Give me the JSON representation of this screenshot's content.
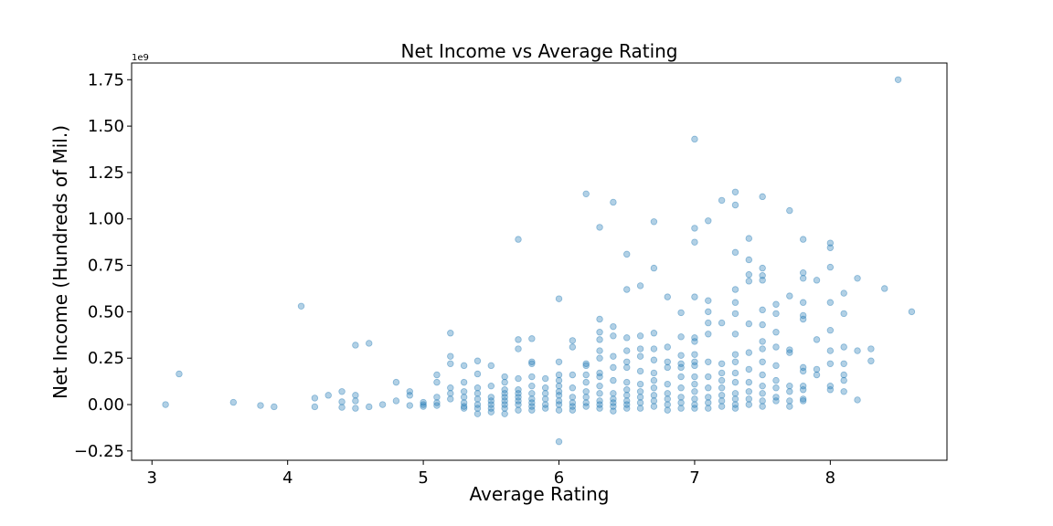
{
  "chart_data": {
    "type": "scatter",
    "title": "Net Income vs Average Rating",
    "xlabel": "Average Rating",
    "ylabel": "Net Income (Hundreds of Mil.)",
    "y_offset_label": "1e9",
    "xlim": [
      2.85,
      8.86
    ],
    "ylim": [
      -0.3,
      1.84
    ],
    "xticks": [
      3,
      4,
      5,
      6,
      7,
      8
    ],
    "xtick_labels": [
      "3",
      "4",
      "5",
      "6",
      "7",
      "8"
    ],
    "yticks": [
      -0.25,
      0.0,
      0.25,
      0.5,
      0.75,
      1.0,
      1.25,
      1.5,
      1.75
    ],
    "ytick_labels": [
      "−0.25",
      "0.00",
      "0.25",
      "0.50",
      "0.75",
      "1.00",
      "1.25",
      "1.50",
      "1.75"
    ],
    "grid": false,
    "marker_color": "#1f77b4",
    "marker_alpha": 0.35,
    "points": [
      [
        3.1,
        0.0
      ],
      [
        3.2,
        0.165
      ],
      [
        3.6,
        0.012
      ],
      [
        3.8,
        -0.005
      ],
      [
        3.9,
        -0.012
      ],
      [
        4.1,
        0.53
      ],
      [
        4.2,
        -0.012
      ],
      [
        4.2,
        0.035
      ],
      [
        4.3,
        0.05
      ],
      [
        4.4,
        0.07
      ],
      [
        4.4,
        0.015
      ],
      [
        4.4,
        -0.015
      ],
      [
        4.5,
        0.32
      ],
      [
        4.5,
        0.05
      ],
      [
        4.5,
        0.02
      ],
      [
        4.5,
        -0.02
      ],
      [
        4.6,
        0.33
      ],
      [
        4.6,
        -0.012
      ],
      [
        4.7,
        0.0
      ],
      [
        4.8,
        0.12
      ],
      [
        4.8,
        0.02
      ],
      [
        4.9,
        0.07
      ],
      [
        4.9,
        0.05
      ],
      [
        4.9,
        -0.005
      ],
      [
        5.0,
        0.012
      ],
      [
        5.0,
        0.0
      ],
      [
        5.0,
        -0.01
      ],
      [
        5.1,
        0.16
      ],
      [
        5.1,
        0.12
      ],
      [
        5.1,
        0.04
      ],
      [
        5.1,
        0.01
      ],
      [
        5.1,
        -0.005
      ],
      [
        5.2,
        0.385
      ],
      [
        5.2,
        0.26
      ],
      [
        5.2,
        0.22
      ],
      [
        5.2,
        0.09
      ],
      [
        5.2,
        0.06
      ],
      [
        5.2,
        0.03
      ],
      [
        5.3,
        0.21
      ],
      [
        5.3,
        0.12
      ],
      [
        5.3,
        0.07
      ],
      [
        5.3,
        0.04
      ],
      [
        5.3,
        0.01
      ],
      [
        5.3,
        -0.01
      ],
      [
        5.3,
        -0.02
      ],
      [
        5.4,
        0.235
      ],
      [
        5.4,
        0.165
      ],
      [
        5.4,
        0.09
      ],
      [
        5.4,
        0.06
      ],
      [
        5.4,
        0.03
      ],
      [
        5.4,
        0.0
      ],
      [
        5.4,
        -0.02
      ],
      [
        5.4,
        -0.05
      ],
      [
        5.5,
        0.21
      ],
      [
        5.5,
        0.1
      ],
      [
        5.5,
        0.04
      ],
      [
        5.5,
        0.02
      ],
      [
        5.5,
        0.0
      ],
      [
        5.5,
        -0.02
      ],
      [
        5.5,
        -0.04
      ],
      [
        5.6,
        0.15
      ],
      [
        5.6,
        0.12
      ],
      [
        5.6,
        0.08
      ],
      [
        5.6,
        0.06
      ],
      [
        5.6,
        0.04
      ],
      [
        5.6,
        0.02
      ],
      [
        5.6,
        0.0
      ],
      [
        5.6,
        -0.02
      ],
      [
        5.6,
        -0.05
      ],
      [
        5.7,
        0.89
      ],
      [
        5.7,
        0.35
      ],
      [
        5.7,
        0.3
      ],
      [
        5.7,
        0.14
      ],
      [
        5.7,
        0.08
      ],
      [
        5.7,
        0.06
      ],
      [
        5.7,
        0.04
      ],
      [
        5.7,
        0.02
      ],
      [
        5.7,
        0.0
      ],
      [
        5.7,
        -0.03
      ],
      [
        5.8,
        0.355
      ],
      [
        5.8,
        0.23
      ],
      [
        5.8,
        0.22
      ],
      [
        5.8,
        0.15
      ],
      [
        5.8,
        0.1
      ],
      [
        5.8,
        0.06
      ],
      [
        5.8,
        0.03
      ],
      [
        5.8,
        0.01
      ],
      [
        5.8,
        -0.01
      ],
      [
        5.8,
        -0.03
      ],
      [
        5.9,
        0.14
      ],
      [
        5.9,
        0.09
      ],
      [
        5.9,
        0.06
      ],
      [
        5.9,
        0.03
      ],
      [
        5.9,
        0.0
      ],
      [
        5.9,
        -0.02
      ],
      [
        6.0,
        0.57
      ],
      [
        6.0,
        0.23
      ],
      [
        6.0,
        0.16
      ],
      [
        6.0,
        0.13
      ],
      [
        6.0,
        0.1
      ],
      [
        6.0,
        0.07
      ],
      [
        6.0,
        0.05
      ],
      [
        6.0,
        0.02
      ],
      [
        6.0,
        0.0
      ],
      [
        6.0,
        -0.03
      ],
      [
        6.0,
        -0.2
      ],
      [
        6.1,
        0.345
      ],
      [
        6.1,
        0.31
      ],
      [
        6.1,
        0.16
      ],
      [
        6.1,
        0.09
      ],
      [
        6.1,
        0.04
      ],
      [
        6.1,
        0.01
      ],
      [
        6.1,
        -0.01
      ],
      [
        6.1,
        -0.03
      ],
      [
        6.2,
        1.135
      ],
      [
        6.2,
        0.22
      ],
      [
        6.2,
        0.21
      ],
      [
        6.2,
        0.16
      ],
      [
        6.2,
        0.12
      ],
      [
        6.2,
        0.07
      ],
      [
        6.2,
        0.04
      ],
      [
        6.2,
        0.01
      ],
      [
        6.2,
        -0.01
      ],
      [
        6.3,
        0.955
      ],
      [
        6.3,
        0.46
      ],
      [
        6.3,
        0.39
      ],
      [
        6.3,
        0.35
      ],
      [
        6.3,
        0.29
      ],
      [
        6.3,
        0.25
      ],
      [
        6.3,
        0.17
      ],
      [
        6.3,
        0.15
      ],
      [
        6.3,
        0.1
      ],
      [
        6.3,
        0.06
      ],
      [
        6.3,
        0.02
      ],
      [
        6.3,
        0.0
      ],
      [
        6.3,
        -0.02
      ],
      [
        6.4,
        1.09
      ],
      [
        6.4,
        0.42
      ],
      [
        6.4,
        0.37
      ],
      [
        6.4,
        0.26
      ],
      [
        6.4,
        0.2
      ],
      [
        6.4,
        0.13
      ],
      [
        6.4,
        0.06
      ],
      [
        6.4,
        0.03
      ],
      [
        6.4,
        0.01
      ],
      [
        6.4,
        -0.01
      ],
      [
        6.4,
        -0.035
      ],
      [
        6.5,
        0.81
      ],
      [
        6.5,
        0.62
      ],
      [
        6.5,
        0.36
      ],
      [
        6.5,
        0.29
      ],
      [
        6.5,
        0.23
      ],
      [
        6.5,
        0.2
      ],
      [
        6.5,
        0.12
      ],
      [
        6.5,
        0.08
      ],
      [
        6.5,
        0.05
      ],
      [
        6.5,
        0.02
      ],
      [
        6.5,
        0.0
      ],
      [
        6.5,
        -0.02
      ],
      [
        6.6,
        0.64
      ],
      [
        6.6,
        0.37
      ],
      [
        6.6,
        0.3
      ],
      [
        6.6,
        0.26
      ],
      [
        6.6,
        0.18
      ],
      [
        6.6,
        0.11
      ],
      [
        6.6,
        0.07
      ],
      [
        6.6,
        0.04
      ],
      [
        6.6,
        0.01
      ],
      [
        6.6,
        -0.02
      ],
      [
        6.7,
        0.985
      ],
      [
        6.7,
        0.735
      ],
      [
        6.7,
        0.385
      ],
      [
        6.7,
        0.3
      ],
      [
        6.7,
        0.24
      ],
      [
        6.7,
        0.17
      ],
      [
        6.7,
        0.13
      ],
      [
        6.7,
        0.09
      ],
      [
        6.7,
        0.05
      ],
      [
        6.7,
        0.02
      ],
      [
        6.7,
        -0.01
      ],
      [
        6.8,
        0.58
      ],
      [
        6.8,
        0.31
      ],
      [
        6.8,
        0.23
      ],
      [
        6.8,
        0.2
      ],
      [
        6.8,
        0.11
      ],
      [
        6.8,
        0.06
      ],
      [
        6.8,
        0.03
      ],
      [
        6.8,
        0.0
      ],
      [
        6.8,
        -0.03
      ],
      [
        6.9,
        0.495
      ],
      [
        6.9,
        0.365
      ],
      [
        6.9,
        0.265
      ],
      [
        6.9,
        0.22
      ],
      [
        6.9,
        0.2
      ],
      [
        6.9,
        0.15
      ],
      [
        6.9,
        0.09
      ],
      [
        6.9,
        0.04
      ],
      [
        6.9,
        0.01
      ],
      [
        6.9,
        -0.02
      ],
      [
        7.0,
        1.43
      ],
      [
        7.0,
        0.95
      ],
      [
        7.0,
        0.875
      ],
      [
        7.0,
        0.58
      ],
      [
        7.0,
        0.36
      ],
      [
        7.0,
        0.34
      ],
      [
        7.0,
        0.27
      ],
      [
        7.0,
        0.23
      ],
      [
        7.0,
        0.21
      ],
      [
        7.0,
        0.15
      ],
      [
        7.0,
        0.11
      ],
      [
        7.0,
        0.07
      ],
      [
        7.0,
        0.03
      ],
      [
        7.0,
        0.0
      ],
      [
        7.0,
        -0.02
      ],
      [
        7.1,
        0.99
      ],
      [
        7.1,
        0.56
      ],
      [
        7.1,
        0.5
      ],
      [
        7.1,
        0.44
      ],
      [
        7.1,
        0.38
      ],
      [
        7.1,
        0.23
      ],
      [
        7.1,
        0.15
      ],
      [
        7.1,
        0.09
      ],
      [
        7.1,
        0.04
      ],
      [
        7.1,
        0.01
      ],
      [
        7.1,
        -0.02
      ],
      [
        7.2,
        1.1
      ],
      [
        7.2,
        0.44
      ],
      [
        7.2,
        0.22
      ],
      [
        7.2,
        0.17
      ],
      [
        7.2,
        0.13
      ],
      [
        7.2,
        0.09
      ],
      [
        7.2,
        0.05
      ],
      [
        7.2,
        0.02
      ],
      [
        7.2,
        -0.01
      ],
      [
        7.3,
        1.145
      ],
      [
        7.3,
        1.075
      ],
      [
        7.3,
        0.82
      ],
      [
        7.3,
        0.62
      ],
      [
        7.3,
        0.55
      ],
      [
        7.3,
        0.49
      ],
      [
        7.3,
        0.38
      ],
      [
        7.3,
        0.27
      ],
      [
        7.3,
        0.23
      ],
      [
        7.3,
        0.17
      ],
      [
        7.3,
        0.12
      ],
      [
        7.3,
        0.06
      ],
      [
        7.3,
        0.03
      ],
      [
        7.3,
        0.0
      ],
      [
        7.3,
        -0.02
      ],
      [
        7.4,
        0.895
      ],
      [
        7.4,
        0.78
      ],
      [
        7.4,
        0.7
      ],
      [
        7.4,
        0.665
      ],
      [
        7.4,
        0.435
      ],
      [
        7.4,
        0.28
      ],
      [
        7.4,
        0.19
      ],
      [
        7.4,
        0.12
      ],
      [
        7.4,
        0.07
      ],
      [
        7.4,
        0.03
      ],
      [
        7.4,
        0.0
      ],
      [
        7.5,
        1.12
      ],
      [
        7.5,
        0.735
      ],
      [
        7.5,
        0.695
      ],
      [
        7.5,
        0.67
      ],
      [
        7.5,
        0.51
      ],
      [
        7.5,
        0.43
      ],
      [
        7.5,
        0.34
      ],
      [
        7.5,
        0.3
      ],
      [
        7.5,
        0.23
      ],
      [
        7.5,
        0.16
      ],
      [
        7.5,
        0.1
      ],
      [
        7.5,
        0.06
      ],
      [
        7.5,
        0.02
      ],
      [
        7.5,
        -0.01
      ],
      [
        7.6,
        0.54
      ],
      [
        7.6,
        0.49
      ],
      [
        7.6,
        0.39
      ],
      [
        7.6,
        0.31
      ],
      [
        7.6,
        0.21
      ],
      [
        7.6,
        0.13
      ],
      [
        7.6,
        0.09
      ],
      [
        7.6,
        0.04
      ],
      [
        7.6,
        0.02
      ],
      [
        7.7,
        1.045
      ],
      [
        7.7,
        0.585
      ],
      [
        7.7,
        0.295
      ],
      [
        7.7,
        0.28
      ],
      [
        7.7,
        0.1
      ],
      [
        7.7,
        0.07
      ],
      [
        7.7,
        0.02
      ],
      [
        7.7,
        -0.01
      ],
      [
        7.8,
        0.89
      ],
      [
        7.8,
        0.71
      ],
      [
        7.8,
        0.68
      ],
      [
        7.8,
        0.55
      ],
      [
        7.8,
        0.48
      ],
      [
        7.8,
        0.46
      ],
      [
        7.8,
        0.2
      ],
      [
        7.8,
        0.18
      ],
      [
        7.8,
        0.1
      ],
      [
        7.8,
        0.08
      ],
      [
        7.8,
        0.03
      ],
      [
        7.8,
        0.02
      ],
      [
        7.9,
        0.67
      ],
      [
        7.9,
        0.35
      ],
      [
        7.9,
        0.19
      ],
      [
        7.9,
        0.16
      ],
      [
        8.0,
        0.87
      ],
      [
        8.0,
        0.845
      ],
      [
        8.0,
        0.74
      ],
      [
        8.0,
        0.55
      ],
      [
        8.0,
        0.4
      ],
      [
        8.0,
        0.29
      ],
      [
        8.0,
        0.22
      ],
      [
        8.0,
        0.1
      ],
      [
        8.0,
        0.08
      ],
      [
        8.1,
        0.6
      ],
      [
        8.1,
        0.49
      ],
      [
        8.1,
        0.31
      ],
      [
        8.1,
        0.22
      ],
      [
        8.1,
        0.16
      ],
      [
        8.1,
        0.13
      ],
      [
        8.1,
        0.07
      ],
      [
        8.2,
        0.68
      ],
      [
        8.2,
        0.29
      ],
      [
        8.2,
        0.025
      ],
      [
        8.3,
        0.3
      ],
      [
        8.3,
        0.235
      ],
      [
        8.4,
        0.625
      ],
      [
        8.5,
        1.75
      ],
      [
        8.6,
        0.5
      ]
    ]
  }
}
